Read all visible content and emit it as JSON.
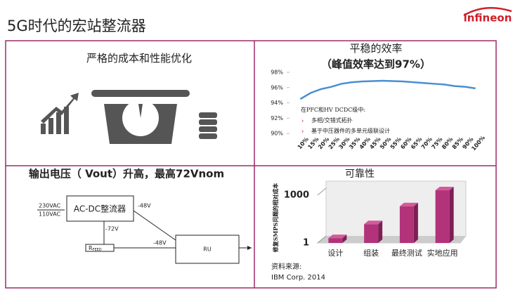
{
  "header": {
    "title": "5G时代的宏站整流器",
    "logo": "infineon"
  },
  "cost_panel": {
    "title": "严格的成本和性能优化"
  },
  "diagram": {
    "title": "输出电压（ Vout）升高，最高72Vnom",
    "inputs": [
      "230VAC",
      "110VAC"
    ],
    "rectifier": "AC-DC整流器",
    "output_label": "-48V",
    "feed_label": "-72V",
    "feed_resistor": {
      "symbol": "R",
      "subscript": "FEED"
    },
    "ru_input_label": "-48V",
    "ru": "RU"
  },
  "chart_data": [
    {
      "type": "line",
      "title": "平稳的效率",
      "subtitle": "（峰值效率达到97%）",
      "categories": [
        "10%",
        "15%",
        "20%",
        "25%",
        "30%",
        "35%",
        "40%",
        "45%",
        "50%",
        "55%",
        "60%",
        "65%",
        "70%",
        "75%",
        "80%",
        "85%",
        "90%",
        "100%"
      ],
      "values": [
        94.5,
        95.3,
        95.8,
        96.1,
        96.5,
        96.7,
        96.8,
        96.85,
        96.9,
        96.85,
        96.8,
        96.7,
        96.6,
        96.5,
        96.4,
        96.2,
        96.1,
        95.9
      ],
      "color": "#4a8fd0",
      "ylim": [
        90,
        98
      ],
      "yticks": [
        {
          "value": 90,
          "label": "90%"
        },
        {
          "value": 92,
          "label": "92%"
        },
        {
          "value": 94,
          "label": "94%"
        },
        {
          "value": 96,
          "label": "96%"
        },
        {
          "value": 98,
          "label": "98%"
        }
      ],
      "annotations": [
        "在PFC和HV DCDC级中:",
        "多相/交错式拓扑",
        "基于中压器件的多单元级联设计"
      ]
    },
    {
      "type": "bar",
      "title": "可靠性",
      "y_label": "修复SMPS问题的相对成本",
      "categories": [
        "设计",
        "组装",
        "最终测试",
        "实地应用"
      ],
      "values": [
        2,
        15,
        200,
        2000
      ],
      "color": "#b23379",
      "ylim": [
        1,
        5000
      ],
      "yticks": [
        1,
        1000
      ],
      "log_scale": true,
      "notes": [
        "资料来源:",
        "IBM Corp. 2014"
      ]
    }
  ]
}
